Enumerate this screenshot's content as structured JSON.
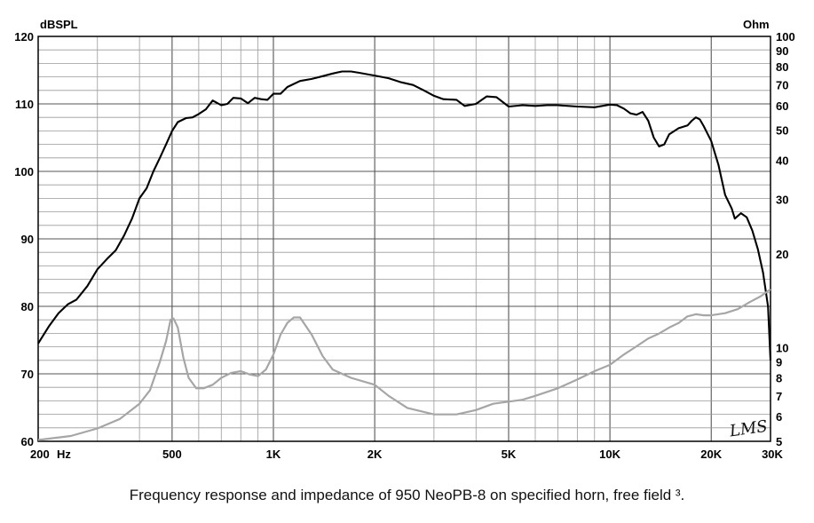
{
  "chart_data": {
    "type": "line",
    "title": "",
    "xscale": "log",
    "xlim": [
      200,
      30000
    ],
    "ylim_left": [
      60,
      120
    ],
    "ylim_right": [
      5,
      100
    ],
    "yscale_right": "log",
    "ylabel_left": "dBSPL",
    "ylabel_right": "Ohm",
    "x_tick_labels": [
      {
        "value": 200,
        "label": "200"
      },
      {
        "value": 500,
        "label": "500"
      },
      {
        "value": 1000,
        "label": "1K"
      },
      {
        "value": 2000,
        "label": "2K"
      },
      {
        "value": 5000,
        "label": "5K"
      },
      {
        "value": 10000,
        "label": "10K"
      },
      {
        "value": 20000,
        "label": "20K"
      },
      {
        "value": 30000,
        "label": "30K"
      }
    ],
    "x_unit_label": "Hz",
    "y_left_ticks": [
      60,
      70,
      80,
      90,
      100,
      110,
      120
    ],
    "y_right_ticks": [
      5,
      6,
      7,
      8,
      9,
      10,
      20,
      30,
      40,
      50,
      60,
      70,
      80,
      90,
      100
    ],
    "grid": true,
    "watermark": "LMS",
    "series": [
      {
        "name": "Frequency response",
        "axis": "left",
        "color": "#000000",
        "points": [
          [
            200,
            74.5
          ],
          [
            215,
            77
          ],
          [
            230,
            79
          ],
          [
            245,
            80.3
          ],
          [
            260,
            81
          ],
          [
            280,
            83
          ],
          [
            300,
            85.5
          ],
          [
            320,
            87
          ],
          [
            340,
            88.3
          ],
          [
            360,
            90.5
          ],
          [
            380,
            93
          ],
          [
            400,
            96
          ],
          [
            420,
            97.5
          ],
          [
            440,
            100
          ],
          [
            460,
            102
          ],
          [
            480,
            104
          ],
          [
            500,
            106
          ],
          [
            520,
            107.3
          ],
          [
            550,
            107.9
          ],
          [
            575,
            108
          ],
          [
            600,
            108.5
          ],
          [
            630,
            109.2
          ],
          [
            660,
            110.5
          ],
          [
            700,
            109.8
          ],
          [
            730,
            110
          ],
          [
            760,
            110.9
          ],
          [
            800,
            110.8
          ],
          [
            840,
            110.1
          ],
          [
            880,
            110.9
          ],
          [
            920,
            110.7
          ],
          [
            960,
            110.6
          ],
          [
            1000,
            111.5
          ],
          [
            1050,
            111.5
          ],
          [
            1100,
            112.5
          ],
          [
            1200,
            113.4
          ],
          [
            1300,
            113.7
          ],
          [
            1400,
            114.1
          ],
          [
            1500,
            114.5
          ],
          [
            1600,
            114.8
          ],
          [
            1700,
            114.8
          ],
          [
            1800,
            114.6
          ],
          [
            1900,
            114.4
          ],
          [
            2000,
            114.2
          ],
          [
            2200,
            113.8
          ],
          [
            2400,
            113.2
          ],
          [
            2600,
            112.8
          ],
          [
            2800,
            112
          ],
          [
            3000,
            111.2
          ],
          [
            3200,
            110.7
          ],
          [
            3500,
            110.6
          ],
          [
            3700,
            109.7
          ],
          [
            4000,
            110
          ],
          [
            4300,
            111.1
          ],
          [
            4600,
            111
          ],
          [
            5000,
            109.6
          ],
          [
            5500,
            109.8
          ],
          [
            6000,
            109.7
          ],
          [
            6500,
            109.8
          ],
          [
            7000,
            109.8
          ],
          [
            8000,
            109.6
          ],
          [
            9000,
            109.5
          ],
          [
            10000,
            109.9
          ],
          [
            10500,
            109.8
          ],
          [
            11000,
            109.3
          ],
          [
            11500,
            108.6
          ],
          [
            12000,
            108.4
          ],
          [
            12500,
            108.8
          ],
          [
            13000,
            107.5
          ],
          [
            13500,
            105
          ],
          [
            14000,
            103.7
          ],
          [
            14500,
            104
          ],
          [
            15000,
            105.5
          ],
          [
            16000,
            106.4
          ],
          [
            17000,
            106.8
          ],
          [
            17500,
            107.5
          ],
          [
            18000,
            108
          ],
          [
            18500,
            107.7
          ],
          [
            19000,
            106.7
          ],
          [
            20000,
            104.5
          ],
          [
            21000,
            101
          ],
          [
            22000,
            96.5
          ],
          [
            23000,
            94.5
          ],
          [
            23500,
            93
          ],
          [
            24500,
            93.8
          ],
          [
            25500,
            93.2
          ],
          [
            26500,
            91.2
          ],
          [
            27500,
            88.5
          ],
          [
            28500,
            85
          ],
          [
            29500,
            80
          ],
          [
            30000,
            72
          ]
        ]
      },
      {
        "name": "Impedance",
        "axis": "right",
        "color": "#a6a6a6",
        "points": [
          [
            200,
            5.05
          ],
          [
            250,
            5.2
          ],
          [
            300,
            5.5
          ],
          [
            350,
            5.9
          ],
          [
            400,
            6.6
          ],
          [
            430,
            7.3
          ],
          [
            460,
            9
          ],
          [
            480,
            10.5
          ],
          [
            495,
            12.3
          ],
          [
            505,
            12.4
          ],
          [
            520,
            11.6
          ],
          [
            540,
            9.3
          ],
          [
            560,
            8
          ],
          [
            590,
            7.4
          ],
          [
            620,
            7.4
          ],
          [
            660,
            7.6
          ],
          [
            700,
            8
          ],
          [
            750,
            8.3
          ],
          [
            800,
            8.4
          ],
          [
            850,
            8.2
          ],
          [
            900,
            8.1
          ],
          [
            950,
            8.5
          ],
          [
            1000,
            9.5
          ],
          [
            1050,
            11
          ],
          [
            1100,
            12
          ],
          [
            1150,
            12.5
          ],
          [
            1200,
            12.5
          ],
          [
            1300,
            11
          ],
          [
            1400,
            9.4
          ],
          [
            1500,
            8.5
          ],
          [
            1700,
            8
          ],
          [
            2000,
            7.6
          ],
          [
            2200,
            7
          ],
          [
            2500,
            6.4
          ],
          [
            3000,
            6.1
          ],
          [
            3500,
            6.1
          ],
          [
            4000,
            6.3
          ],
          [
            4500,
            6.6
          ],
          [
            5500,
            6.8
          ],
          [
            6000,
            7
          ],
          [
            7000,
            7.4
          ],
          [
            8000,
            7.9
          ],
          [
            9000,
            8.4
          ],
          [
            10000,
            8.8
          ],
          [
            11000,
            9.5
          ],
          [
            12000,
            10.1
          ],
          [
            13000,
            10.7
          ],
          [
            14000,
            11.1
          ],
          [
            15000,
            11.6
          ],
          [
            16000,
            12
          ],
          [
            17000,
            12.6
          ],
          [
            18000,
            12.8
          ],
          [
            19000,
            12.7
          ],
          [
            20000,
            12.7
          ],
          [
            22000,
            12.9
          ],
          [
            24000,
            13.3
          ],
          [
            26000,
            14
          ],
          [
            28000,
            14.6
          ],
          [
            30000,
            15.4
          ]
        ]
      }
    ]
  },
  "caption": "Frequency response and impedance of 950 NeoPB-8 on specified horn, free field ³."
}
